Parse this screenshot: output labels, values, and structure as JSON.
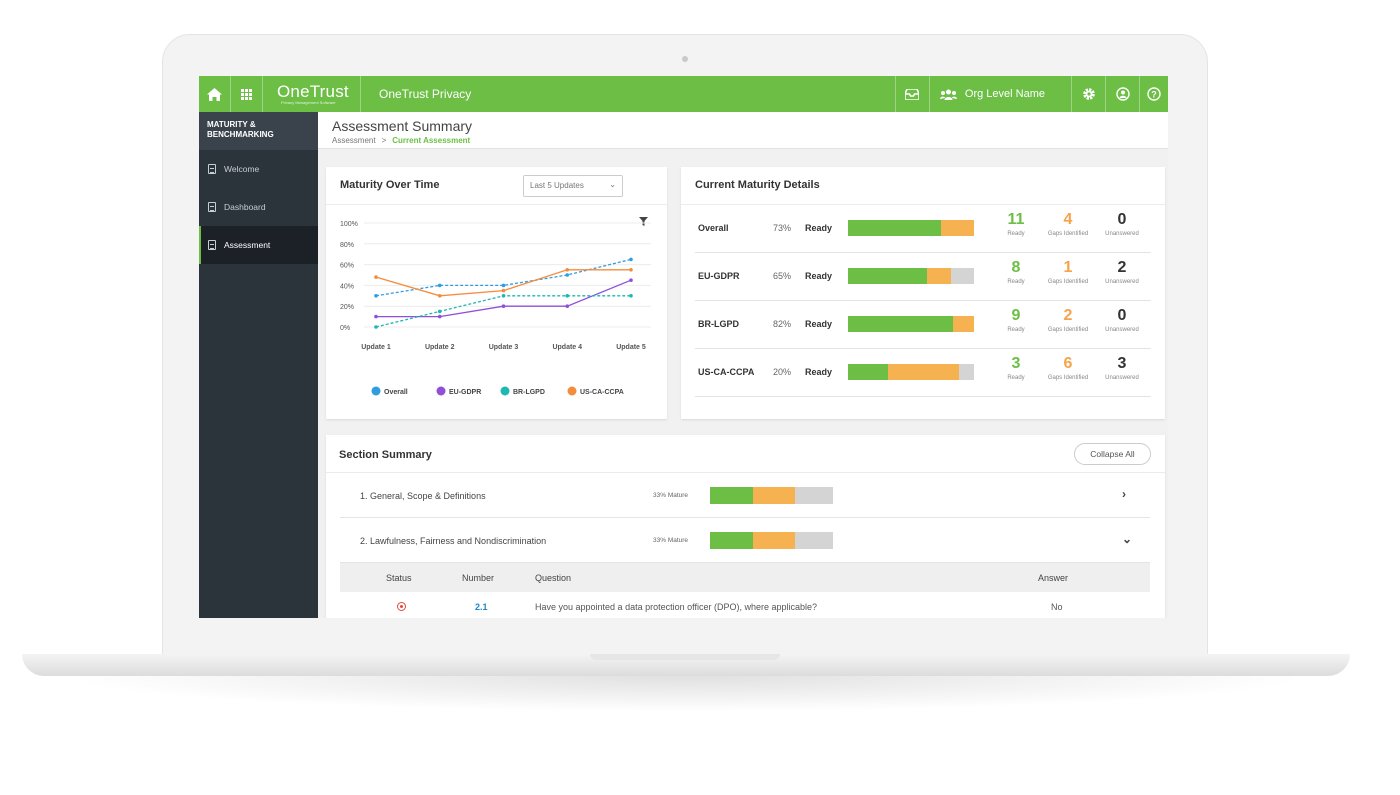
{
  "topbar": {
    "brand": "OneTrust",
    "brand_tagline": "Privacy Management Software",
    "product": "OneTrust Privacy",
    "org_name": "Org Level Name",
    "accent": "#6cbe45"
  },
  "sidebar": {
    "heading": "MATURITY & BENCHMARKING",
    "items": [
      {
        "label": "Welcome",
        "active": false
      },
      {
        "label": "Dashboard",
        "active": false
      },
      {
        "label": "Assessment",
        "active": true
      }
    ]
  },
  "header": {
    "title": "Assessment Summary",
    "breadcrumb": [
      "Assessment",
      "Current Assessment"
    ]
  },
  "maturity_over_time": {
    "title": "Maturity Over Time",
    "select_value": "Last 5 Updates",
    "chart_data": {
      "type": "line",
      "x": [
        "Update 1",
        "Update 2",
        "Update 3",
        "Update 4",
        "Update 5"
      ],
      "ylim": [
        0,
        100
      ],
      "yticks": [
        "100%",
        "80%",
        "60%",
        "40%",
        "20%",
        "0%"
      ],
      "series": [
        {
          "name": "Overall",
          "color": "#2f9de0",
          "dashed": true,
          "values": [
            30,
            40,
            40,
            50,
            65
          ]
        },
        {
          "name": "EU-GDPR",
          "color": "#8f4fd8",
          "dashed": false,
          "values": [
            10,
            10,
            20,
            20,
            45
          ]
        },
        {
          "name": "BR-LGPD",
          "color": "#1fb7b1",
          "dashed": true,
          "values": [
            0,
            15,
            30,
            30,
            30
          ]
        },
        {
          "name": "US-CA-CCPA",
          "color": "#f58c3b",
          "dashed": false,
          "values": [
            48,
            30,
            35,
            55,
            55
          ]
        }
      ]
    }
  },
  "current_maturity": {
    "title": "Current Maturity Details",
    "stat_labels": [
      "Ready",
      "Gaps Identified",
      "Unanswered"
    ],
    "rows": [
      {
        "label": "Overall",
        "pct": "73%",
        "status": "Ready",
        "ready_frac": 0.74,
        "gap_frac": 0.26,
        "ready": "11",
        "gaps": "4",
        "unanswered": "0"
      },
      {
        "label": "EU-GDPR",
        "pct": "65%",
        "status": "Ready",
        "ready_frac": 0.63,
        "gap_frac": 0.19,
        "ready": "8",
        "gaps": "1",
        "unanswered": "2"
      },
      {
        "label": "BR-LGPD",
        "pct": "82%",
        "status": "Ready",
        "ready_frac": 0.83,
        "gap_frac": 0.17,
        "ready": "9",
        "gaps": "2",
        "unanswered": "0"
      },
      {
        "label": "US-CA-CCPA",
        "pct": "20%",
        "status": "Ready",
        "ready_frac": 0.32,
        "gap_frac": 0.56,
        "ready": "3",
        "gaps": "6",
        "unanswered": "3"
      }
    ]
  },
  "section_summary": {
    "title": "Section Summary",
    "collapse_label": "Collapse All",
    "sections": [
      {
        "label": "1. General, Scope & Definitions",
        "mature": "33% Mature",
        "ready_frac": 0.35,
        "gap_frac": 0.34,
        "expanded": false
      },
      {
        "label": "2. Lawfulness, Fairness and Nondiscrimination",
        "mature": "33% Mature",
        "ready_frac": 0.35,
        "gap_frac": 0.34,
        "expanded": true
      }
    ],
    "columns": [
      "Status",
      "Number",
      "Question",
      "Answer"
    ],
    "questions": [
      {
        "number": "2.1",
        "question": "Have you appointed a data protection officer (DPO), where applicable?",
        "answer": "No"
      }
    ]
  }
}
